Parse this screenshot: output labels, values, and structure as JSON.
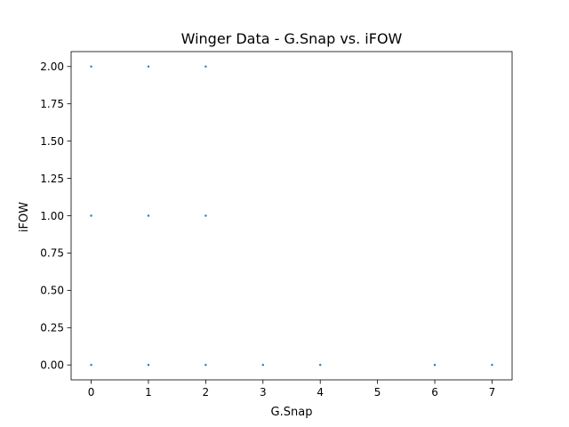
{
  "chart_data": {
    "type": "scatter",
    "title": "Winger Data - G.Snap vs. iFOW",
    "xlabel": "G.Snap",
    "ylabel": "iFOW",
    "xlim": [
      -0.35,
      7.35
    ],
    "ylim": [
      -0.1,
      2.1
    ],
    "xticks": [
      0,
      1,
      2,
      3,
      4,
      5,
      6,
      7
    ],
    "xtick_labels": [
      "0",
      "1",
      "2",
      "3",
      "4",
      "5",
      "6",
      "7"
    ],
    "yticks": [
      0,
      0.25,
      0.5,
      0.75,
      1,
      1.25,
      1.5,
      1.75,
      2
    ],
    "ytick_labels": [
      "0.00",
      "0.25",
      "0.50",
      "0.75",
      "1.00",
      "1.25",
      "1.50",
      "1.75",
      "2.00"
    ],
    "grid": false,
    "legend": "none",
    "color": "#1f77b4",
    "series": [
      {
        "x": [
          0,
          1,
          2,
          0,
          1,
          2,
          0,
          1,
          2,
          3,
          4,
          6,
          7
        ],
        "y": [
          2,
          2,
          2,
          1,
          1,
          1,
          0,
          0,
          0,
          0,
          0,
          0,
          0
        ]
      }
    ]
  }
}
